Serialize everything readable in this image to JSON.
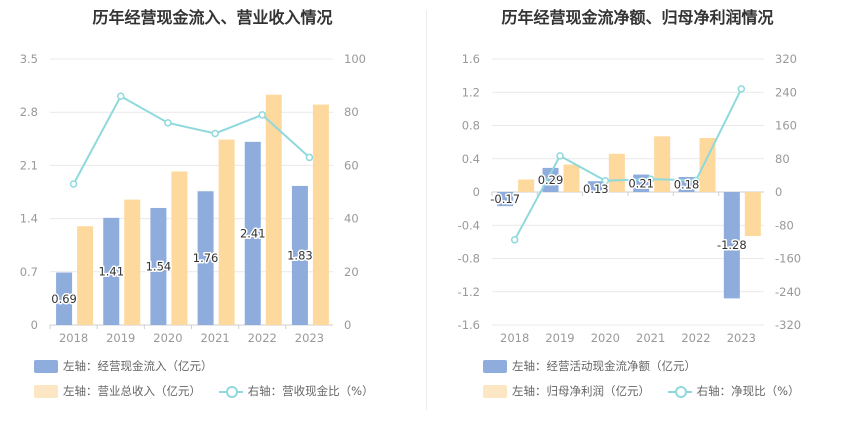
{
  "colors": {
    "blue": "#8eacdc",
    "orange": "#fdd99e",
    "teal": "#8fd9dd",
    "axis": "#999999",
    "grid": "#e9e9e9"
  },
  "left": {
    "title": "历年经营现金流入、营业收入情况",
    "legend": {
      "blue": "左轴：经营现金流入（亿元）",
      "orange": "左轴：营业总收入（亿元）",
      "line": "右轴：营收现金比（%）"
    }
  },
  "right": {
    "title": "历年经营现金流净额、归母净利润情况",
    "legend": {
      "blue": "左轴：经营活动现金流净额（亿元）",
      "orange": "左轴：归母净利润（亿元）",
      "line": "右轴：净现比（%）"
    }
  },
  "chart_data": [
    {
      "type": "bar",
      "categories": [
        "2018",
        "2019",
        "2020",
        "2021",
        "2022",
        "2023"
      ],
      "ylim_left": [
        0,
        3.5
      ],
      "yticks_left": [
        "0",
        "0.7",
        "1.4",
        "2.1",
        "2.8",
        "3.5"
      ],
      "ylim_right": [
        0,
        100
      ],
      "yticks_right": [
        "0",
        "20",
        "40",
        "60",
        "80",
        "100"
      ],
      "series": [
        {
          "name": "左轴：经营现金流入（亿元）",
          "axis": "left",
          "type": "bar",
          "values": [
            0.69,
            1.41,
            1.54,
            1.76,
            2.41,
            1.83
          ],
          "labels": [
            "0.69",
            "1.41",
            "1.54",
            "1.76",
            "2.41",
            "1.83"
          ]
        },
        {
          "name": "左轴：营业总收入（亿元）",
          "axis": "left",
          "type": "bar",
          "values": [
            1.3,
            1.65,
            2.02,
            2.44,
            3.03,
            2.9
          ]
        },
        {
          "name": "右轴：营收现金比（%）",
          "axis": "right",
          "type": "line",
          "values": [
            53,
            86,
            76,
            72,
            79,
            63
          ]
        }
      ]
    },
    {
      "type": "bar",
      "categories": [
        "2018",
        "2019",
        "2020",
        "2021",
        "2022",
        "2023"
      ],
      "ylim_left": [
        -1.6,
        1.6
      ],
      "yticks_left": [
        "-1.6",
        "-1.2",
        "-0.8",
        "-0.4",
        "0",
        "0.4",
        "0.8",
        "1.2",
        "1.6"
      ],
      "ylim_right": [
        -320,
        320
      ],
      "yticks_right": [
        "-320",
        "-240",
        "-160",
        "-80",
        "0",
        "80",
        "160",
        "240",
        "320"
      ],
      "series": [
        {
          "name": "左轴：经营活动现金流净额（亿元）",
          "axis": "left",
          "type": "bar",
          "values": [
            -0.17,
            0.29,
            0.13,
            0.21,
            0.18,
            -1.28
          ],
          "labels": [
            "-0.17",
            "0.29",
            "0.13",
            "0.21",
            "0.18",
            "-1.28"
          ]
        },
        {
          "name": "左轴：归母净利润（亿元）",
          "axis": "left",
          "type": "bar",
          "values": [
            0.15,
            0.33,
            0.46,
            0.67,
            0.65,
            -0.53
          ]
        },
        {
          "name": "右轴：净现比（%）",
          "axis": "right",
          "type": "line",
          "values": [
            -115,
            87,
            27,
            31,
            28,
            248
          ]
        }
      ]
    }
  ]
}
